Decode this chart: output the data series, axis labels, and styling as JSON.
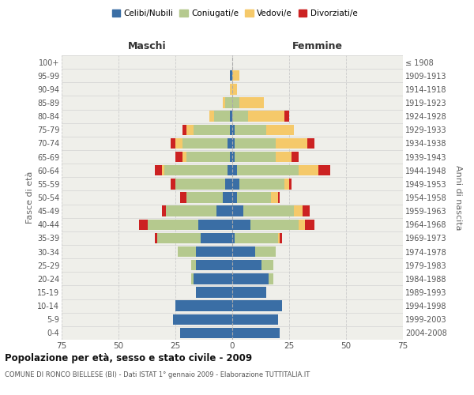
{
  "age_groups": [
    "0-4",
    "5-9",
    "10-14",
    "15-19",
    "20-24",
    "25-29",
    "30-34",
    "35-39",
    "40-44",
    "45-49",
    "50-54",
    "55-59",
    "60-64",
    "65-69",
    "70-74",
    "75-79",
    "80-84",
    "85-89",
    "90-94",
    "95-99",
    "100+"
  ],
  "birth_years": [
    "2004-2008",
    "1999-2003",
    "1994-1998",
    "1989-1993",
    "1984-1988",
    "1979-1983",
    "1974-1978",
    "1969-1973",
    "1964-1968",
    "1959-1963",
    "1954-1958",
    "1949-1953",
    "1944-1948",
    "1939-1943",
    "1934-1938",
    "1929-1933",
    "1924-1928",
    "1919-1923",
    "1914-1918",
    "1909-1913",
    "≤ 1908"
  ],
  "maschi": {
    "celibi": [
      23,
      26,
      25,
      16,
      17,
      16,
      16,
      14,
      15,
      7,
      4,
      3,
      2,
      1,
      2,
      1,
      1,
      0,
      0,
      1,
      0
    ],
    "coniugati": [
      0,
      0,
      0,
      0,
      1,
      2,
      8,
      19,
      22,
      22,
      16,
      22,
      28,
      19,
      20,
      16,
      7,
      3,
      0,
      0,
      0
    ],
    "vedovi": [
      0,
      0,
      0,
      0,
      0,
      0,
      0,
      0,
      0,
      0,
      0,
      0,
      1,
      2,
      3,
      3,
      2,
      1,
      1,
      0,
      0
    ],
    "divorziati": [
      0,
      0,
      0,
      0,
      0,
      0,
      0,
      1,
      4,
      2,
      3,
      2,
      3,
      3,
      2,
      2,
      0,
      0,
      0,
      0,
      0
    ]
  },
  "femmine": {
    "nubili": [
      21,
      20,
      22,
      15,
      16,
      13,
      10,
      1,
      8,
      5,
      2,
      3,
      2,
      1,
      1,
      1,
      0,
      0,
      0,
      0,
      0
    ],
    "coniugate": [
      0,
      0,
      0,
      0,
      2,
      5,
      9,
      19,
      21,
      22,
      15,
      20,
      27,
      18,
      18,
      14,
      7,
      3,
      0,
      0,
      0
    ],
    "vedove": [
      0,
      0,
      0,
      0,
      0,
      0,
      0,
      1,
      3,
      4,
      3,
      2,
      9,
      7,
      14,
      12,
      16,
      11,
      2,
      3,
      0
    ],
    "divorziate": [
      0,
      0,
      0,
      0,
      0,
      0,
      0,
      1,
      4,
      3,
      1,
      1,
      5,
      3,
      3,
      0,
      2,
      0,
      0,
      0,
      0
    ]
  },
  "colors": {
    "celibi": "#3a6ea5",
    "coniugati": "#b5c98e",
    "vedovi": "#f5c96a",
    "divorziati": "#cc2222"
  },
  "xlim": 75,
  "title": "Popolazione per età, sesso e stato civile - 2009",
  "subtitle": "COMUNE DI RONCO BIELLESE (BI) - Dati ISTAT 1° gennaio 2009 - Elaborazione TUTTITALIA.IT",
  "ylabel_left": "Fasce di età",
  "ylabel_right": "Anni di nascita",
  "xlabel_maschi": "Maschi",
  "xlabel_femmine": "Femmine",
  "legend_labels": [
    "Celibi/Nubili",
    "Coniugati/e",
    "Vedovi/e",
    "Divorziati/e"
  ],
  "background_color": "#efefea",
  "bar_height": 0.78
}
